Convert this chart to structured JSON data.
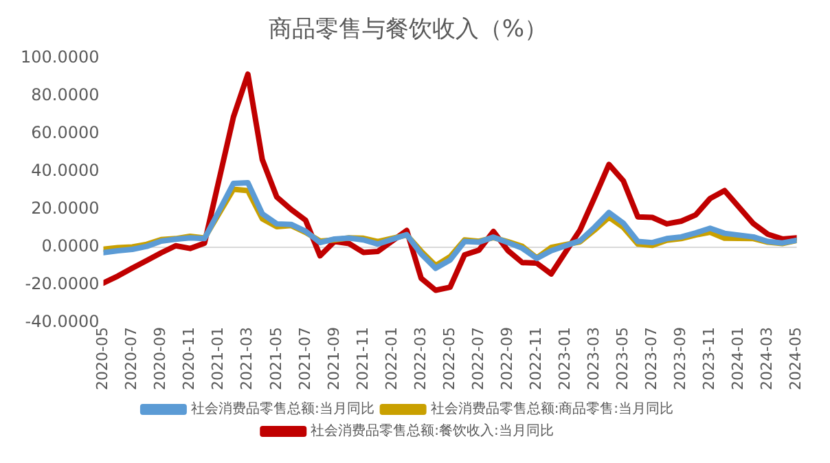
{
  "chart_data": {
    "type": "line",
    "title": "商品零售与餐饮收入（%）",
    "x": [
      "2020-05",
      "2020-06",
      "2020-07",
      "2020-08",
      "2020-09",
      "2020-10",
      "2020-11",
      "2020-12",
      "2021-02",
      "2021-03",
      "2021-04",
      "2021-05",
      "2021-06",
      "2021-07",
      "2021-08",
      "2021-09",
      "2021-10",
      "2021-11",
      "2021-12",
      "2022-02",
      "2022-03",
      "2022-04",
      "2022-05",
      "2022-06",
      "2022-07",
      "2022-08",
      "2022-09",
      "2022-10",
      "2022-11",
      "2022-12",
      "2023-02",
      "2023-03",
      "2023-04",
      "2023-05",
      "2023-06",
      "2023-07",
      "2023-08",
      "2023-09",
      "2023-10",
      "2023-11",
      "2023-12",
      "2024-02",
      "2024-03",
      "2024-04",
      "2024-05"
    ],
    "series": [
      {
        "name": "社会消费品零售总额:当月同比",
        "color": "#5b9bd5",
        "values": [
          -2.8,
          -1.8,
          -1.1,
          0.5,
          3.3,
          4.3,
          5.0,
          4.6,
          33.8,
          34.2,
          17.7,
          12.4,
          12.1,
          8.5,
          2.5,
          4.4,
          4.9,
          3.9,
          1.7,
          6.7,
          -3.5,
          -11.1,
          -6.7,
          3.1,
          2.7,
          5.4,
          2.5,
          -0.5,
          -5.9,
          -1.8,
          3.5,
          10.6,
          18.4,
          12.7,
          3.1,
          2.5,
          4.6,
          5.5,
          7.6,
          10.1,
          7.4,
          5.5,
          3.1,
          2.3,
          3.7
        ]
      },
      {
        "name": "社会消费品零售总额:商品零售:当月同比",
        "color": "#c9a000",
        "values": [
          -1.0,
          -0.2,
          0.2,
          1.6,
          4.1,
          4.6,
          5.8,
          4.9,
          30.7,
          30.0,
          15.1,
          10.9,
          11.5,
          7.9,
          3.3,
          3.9,
          5.0,
          4.8,
          3.0,
          6.5,
          -2.1,
          -9.7,
          -5.0,
          3.9,
          3.2,
          5.1,
          3.0,
          0.5,
          -5.6,
          -0.1,
          2.9,
          9.1,
          15.9,
          10.5,
          1.7,
          1.0,
          3.7,
          4.6,
          6.5,
          8.0,
          4.8,
          4.6,
          2.7,
          2.0,
          3.6
        ]
      },
      {
        "name": "社会消费品零售总额:餐饮收入:当月同比",
        "color": "#c00000",
        "values": [
          -18.9,
          -15.2,
          -11.0,
          -7.0,
          -2.9,
          0.8,
          -0.6,
          2.2,
          68.9,
          91.6,
          46.4,
          26.6,
          20.0,
          14.3,
          -4.5,
          3.1,
          2.0,
          -2.7,
          -2.2,
          8.9,
          -16.4,
          -22.7,
          -21.1,
          -4.0,
          -1.5,
          8.4,
          -1.7,
          -8.1,
          -8.4,
          -14.1,
          9.2,
          26.3,
          43.8,
          35.1,
          16.1,
          15.8,
          12.4,
          13.8,
          17.1,
          25.8,
          30.0,
          12.5,
          6.9,
          4.4,
          5.0
        ]
      }
    ],
    "xlim": [
      "2020-05",
      "2024-05"
    ],
    "xticks": [
      "2020-05",
      "2020-07",
      "2020-09",
      "2020-11",
      "2021-01",
      "2021-03",
      "2021-05",
      "2021-07",
      "2021-09",
      "2021-11",
      "2022-01",
      "2022-03",
      "2022-05",
      "2022-07",
      "2022-09",
      "2022-11",
      "2023-01",
      "2023-03",
      "2023-05",
      "2023-07",
      "2023-09",
      "2023-11",
      "2024-01",
      "2024-03",
      "2024-05"
    ],
    "ylim": [
      -40,
      100
    ],
    "yticks": [
      {
        "value": -40,
        "label": "-40.0000"
      },
      {
        "value": -20,
        "label": "-20.0000"
      },
      {
        "value": 0,
        "label": "0.0000"
      },
      {
        "value": 20,
        "label": "20.0000"
      },
      {
        "value": 40,
        "label": "40.0000"
      },
      {
        "value": 60,
        "label": "60.0000"
      },
      {
        "value": 80,
        "label": "80.0000"
      },
      {
        "value": 100,
        "label": "100.0000"
      }
    ],
    "ref_lines": [
      {
        "axis": "y",
        "value": 0,
        "color": "#d9d9d9"
      }
    ],
    "grid": false,
    "legend": "bottom",
    "marker": "none",
    "line_style": "solid"
  }
}
